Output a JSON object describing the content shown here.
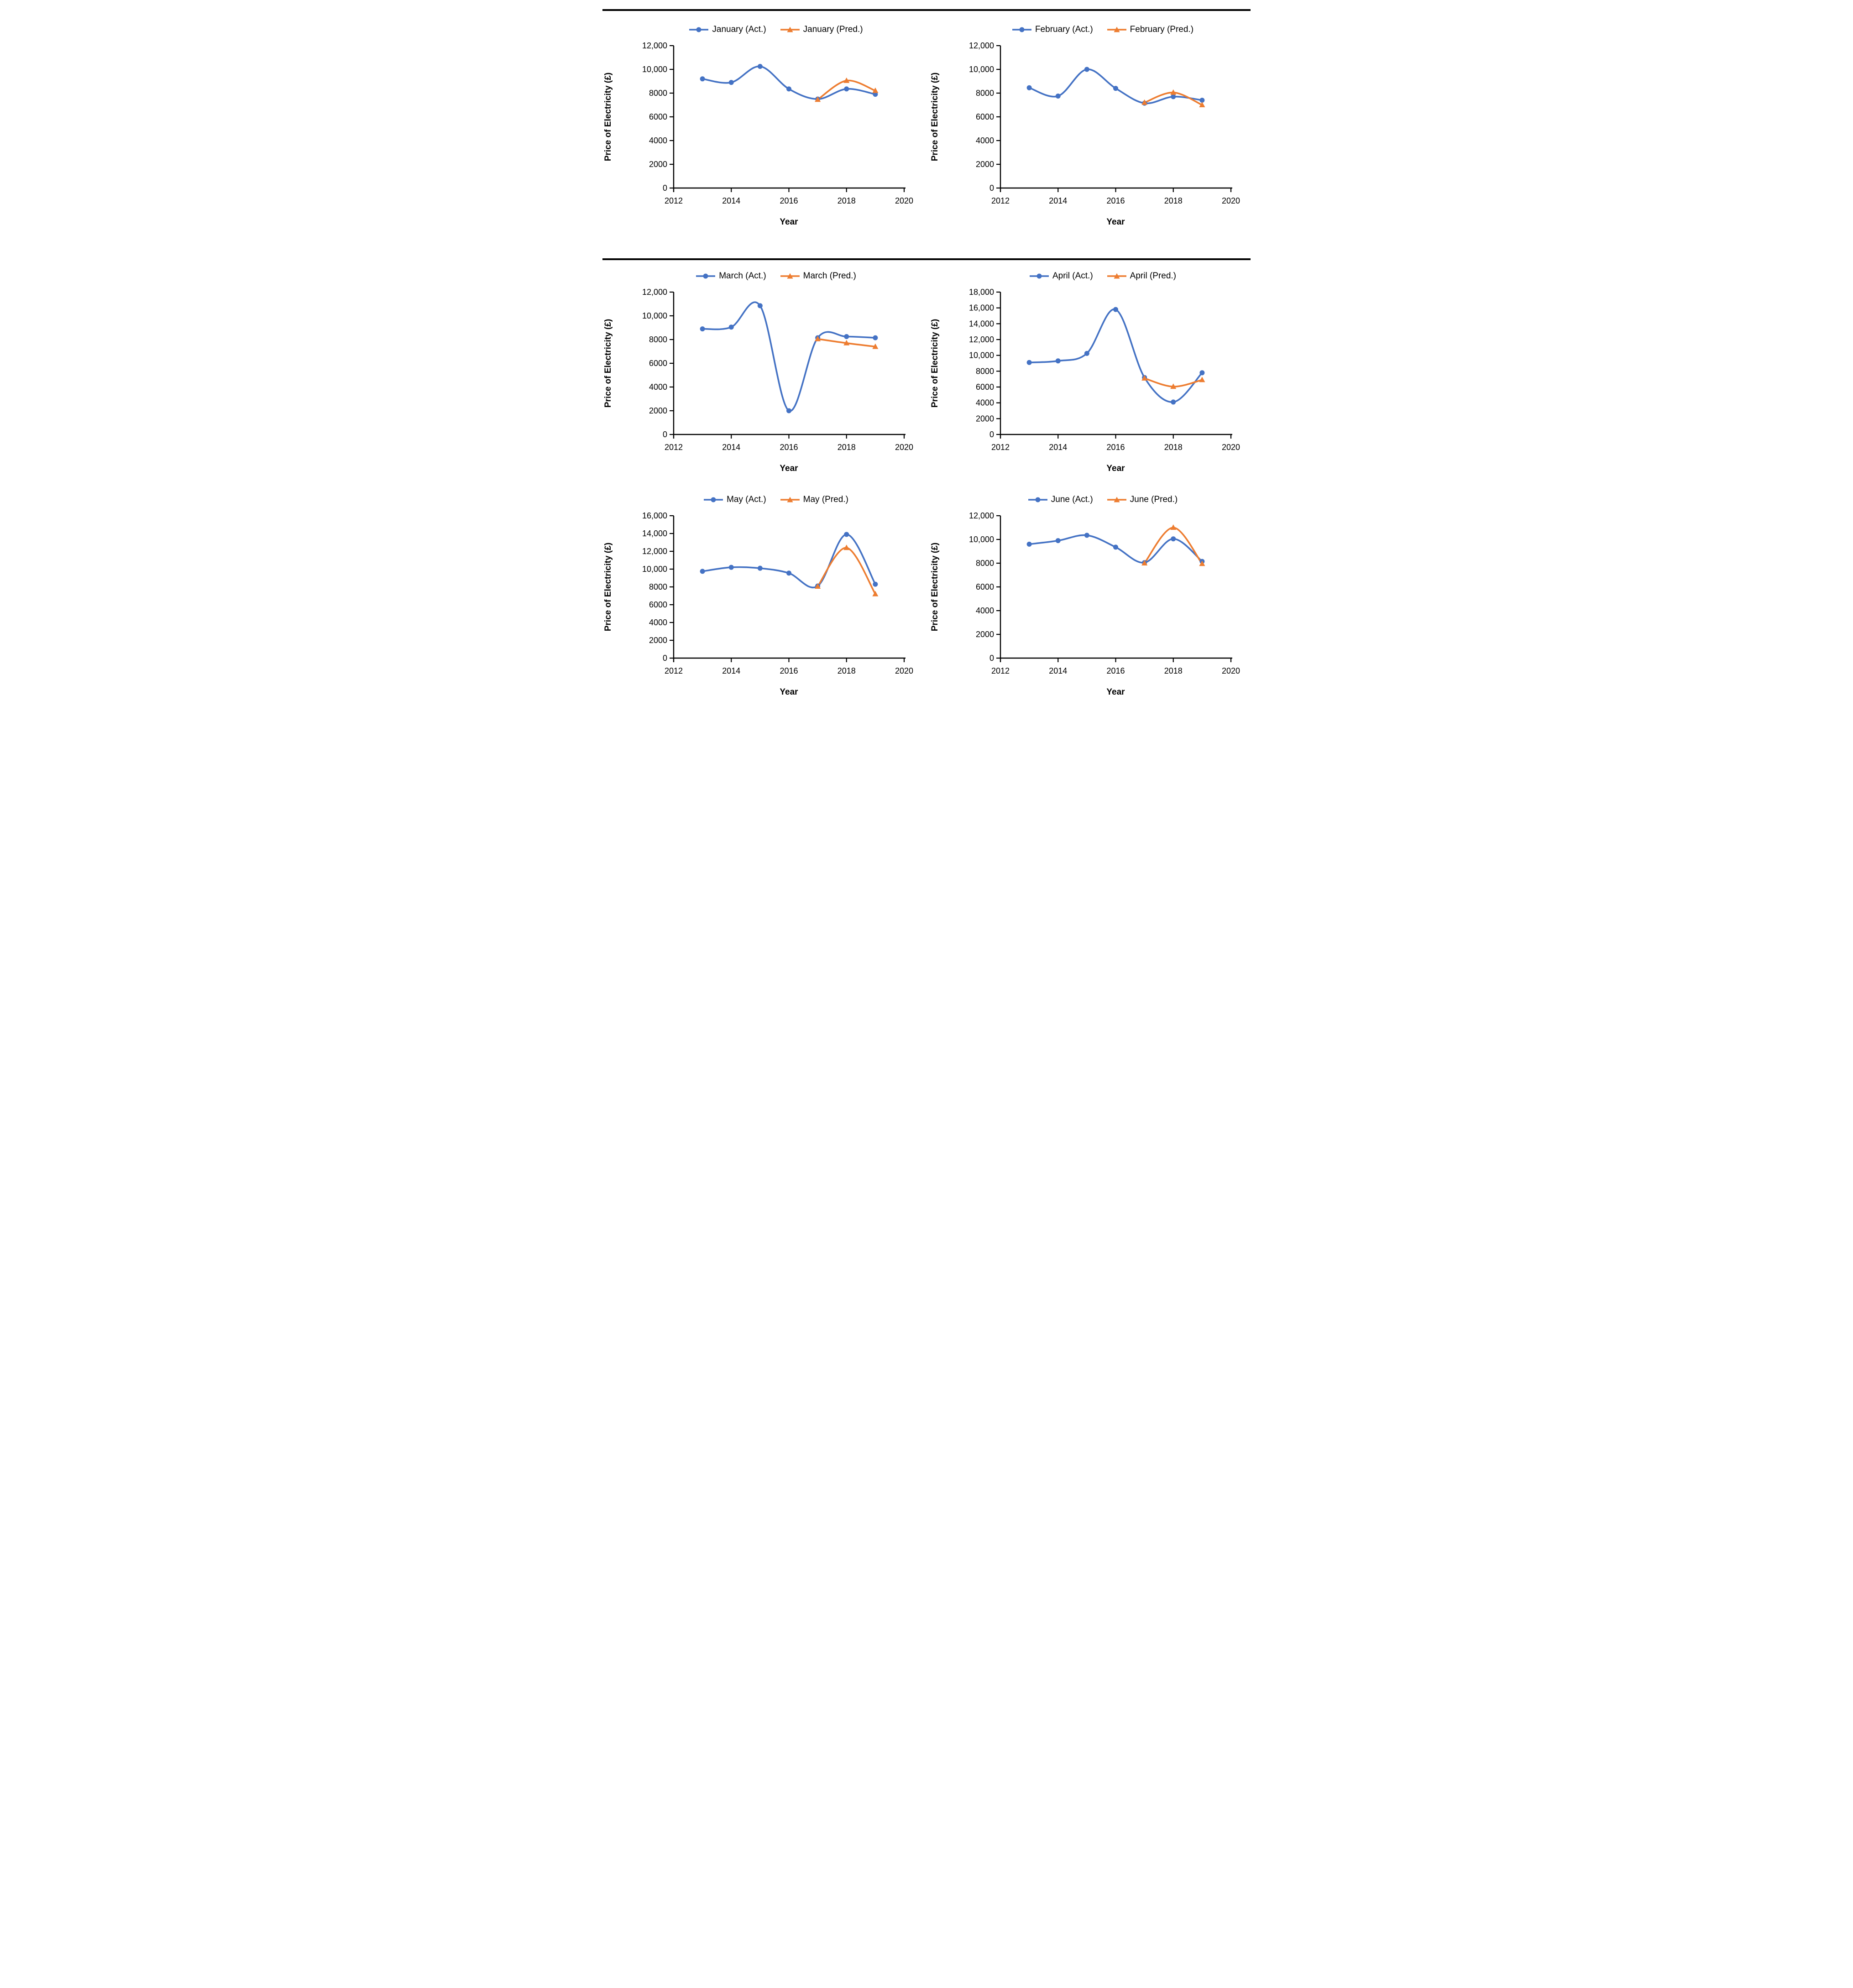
{
  "colors": {
    "actual": "#4472C4",
    "predicted": "#ED7D31",
    "axis": "#000000",
    "divider": "#000000"
  },
  "chart_data": [
    {
      "id": "january",
      "type": "line",
      "title": "",
      "xlabel": "Year",
      "ylabel": "Price of Electricity (£)",
      "xlim": [
        2012,
        2020
      ],
      "ylim": [
        0,
        12000
      ],
      "x_ticks": [
        2012,
        2014,
        2016,
        2018,
        2020
      ],
      "x_tick_labels": [
        "2012",
        "2014",
        "2016",
        "2018",
        "2020"
      ],
      "y_ticks": [
        0,
        2000,
        4000,
        6000,
        8000,
        10000,
        12000
      ],
      "y_tick_labels": [
        "0",
        "2000",
        "4000",
        "6000",
        "8000",
        "10,000",
        "12,000"
      ],
      "legend_position": "top",
      "grid": false,
      "series": [
        {
          "name": "January (Act.)",
          "role": "actual",
          "marker": "circle",
          "x": [
            2013,
            2014,
            2015,
            2016,
            2017,
            2018,
            2019
          ],
          "y": [
            9200,
            8900,
            10250,
            8350,
            7500,
            8350,
            7900
          ]
        },
        {
          "name": "January (Pred.)",
          "role": "predicted",
          "marker": "triangle",
          "x": [
            2017,
            2018,
            2019
          ],
          "y": [
            7450,
            9050,
            8200
          ]
        }
      ]
    },
    {
      "id": "february",
      "type": "line",
      "title": "",
      "xlabel": "Year",
      "ylabel": "Price of Electricity (£)",
      "xlim": [
        2012,
        2020
      ],
      "ylim": [
        0,
        12000
      ],
      "x_ticks": [
        2012,
        2014,
        2016,
        2018,
        2020
      ],
      "x_tick_labels": [
        "2012",
        "2014",
        "2016",
        "2018",
        "2020"
      ],
      "y_ticks": [
        0,
        2000,
        4000,
        6000,
        8000,
        10000,
        12000
      ],
      "y_tick_labels": [
        "0",
        "2000",
        "4000",
        "6000",
        "8000",
        "10,000",
        "12,000"
      ],
      "legend_position": "top",
      "grid": false,
      "series": [
        {
          "name": "February (Act.)",
          "role": "actual",
          "marker": "circle",
          "x": [
            2013,
            2014,
            2015,
            2016,
            2017,
            2018,
            2019
          ],
          "y": [
            8450,
            7750,
            10000,
            8400,
            7150,
            7700,
            7400
          ]
        },
        {
          "name": "February (Pred.)",
          "role": "predicted",
          "marker": "triangle",
          "x": [
            2017,
            2018,
            2019
          ],
          "y": [
            7200,
            8050,
            7000
          ]
        }
      ]
    },
    {
      "id": "march",
      "type": "line",
      "title": "",
      "xlabel": "Year",
      "ylabel": "Price of Electricity (£)",
      "xlim": [
        2012,
        2020
      ],
      "ylim": [
        0,
        12000
      ],
      "x_ticks": [
        2012,
        2014,
        2016,
        2018,
        2020
      ],
      "x_tick_labels": [
        "2012",
        "2014",
        "2016",
        "2018",
        "2020"
      ],
      "y_ticks": [
        0,
        2000,
        4000,
        6000,
        8000,
        10000,
        12000
      ],
      "y_tick_labels": [
        "0",
        "2000",
        "4000",
        "6000",
        "8000",
        "10,000",
        "12,000"
      ],
      "legend_position": "top",
      "grid": false,
      "series": [
        {
          "name": "March (Act.)",
          "role": "actual",
          "marker": "circle",
          "x": [
            2013,
            2014,
            2015,
            2016,
            2017,
            2018,
            2019
          ],
          "y": [
            8900,
            9050,
            10850,
            2000,
            8150,
            8250,
            8150
          ]
        },
        {
          "name": "March (Pred.)",
          "role": "predicted",
          "marker": "triangle",
          "x": [
            2017,
            2018,
            2019
          ],
          "y": [
            8050,
            7700,
            7400
          ]
        }
      ]
    },
    {
      "id": "april",
      "type": "line",
      "title": "",
      "xlabel": "Year",
      "ylabel": "Price of Electricity (£)",
      "xlim": [
        2012,
        2020
      ],
      "ylim": [
        0,
        18000
      ],
      "x_ticks": [
        2012,
        2014,
        2016,
        2018,
        2020
      ],
      "x_tick_labels": [
        "2012",
        "2014",
        "2016",
        "2018",
        "2020"
      ],
      "y_ticks": [
        0,
        2000,
        4000,
        6000,
        8000,
        10000,
        12000,
        14000,
        16000,
        18000
      ],
      "y_tick_labels": [
        "0",
        "2000",
        "4000",
        "6000",
        "8000",
        "10,000",
        "12,000",
        "14,000",
        "16,000",
        "18,000"
      ],
      "legend_position": "top",
      "grid": false,
      "series": [
        {
          "name": "April (Act.)",
          "role": "actual",
          "marker": "circle",
          "x": [
            2013,
            2014,
            2015,
            2016,
            2017,
            2018,
            2019
          ],
          "y": [
            9100,
            9300,
            10250,
            15800,
            7200,
            4100,
            7800
          ]
        },
        {
          "name": "April (Pred.)",
          "role": "predicted",
          "marker": "triangle",
          "x": [
            2017,
            2018,
            2019
          ],
          "y": [
            7100,
            6050,
            6900
          ]
        }
      ]
    },
    {
      "id": "may",
      "type": "line",
      "title": "",
      "xlabel": "Year",
      "ylabel": "Price of Electricity (£)",
      "xlim": [
        2012,
        2020
      ],
      "ylim": [
        0,
        16000
      ],
      "x_ticks": [
        2012,
        2014,
        2016,
        2018,
        2020
      ],
      "x_tick_labels": [
        "2012",
        "2014",
        "2016",
        "2018",
        "2020"
      ],
      "y_ticks": [
        0,
        2000,
        4000,
        6000,
        8000,
        10000,
        12000,
        14000,
        16000
      ],
      "y_tick_labels": [
        "0",
        "2000",
        "4000",
        "6000",
        "8000",
        "10,000",
        "12,000",
        "14,000",
        "16,000"
      ],
      "legend_position": "top",
      "grid": false,
      "series": [
        {
          "name": "May (Act.)",
          "role": "actual",
          "marker": "circle",
          "x": [
            2013,
            2014,
            2015,
            2016,
            2017,
            2018,
            2019
          ],
          "y": [
            9750,
            10200,
            10100,
            9550,
            8100,
            13900,
            8300
          ]
        },
        {
          "name": "May (Pred.)",
          "role": "predicted",
          "marker": "triangle",
          "x": [
            2017,
            2018,
            2019
          ],
          "y": [
            8050,
            12400,
            7200
          ]
        }
      ]
    },
    {
      "id": "june",
      "type": "line",
      "title": "",
      "xlabel": "Year",
      "ylabel": "Price of Electricity (£)",
      "xlim": [
        2012,
        2020
      ],
      "ylim": [
        0,
        12000
      ],
      "x_ticks": [
        2012,
        2014,
        2016,
        2018,
        2020
      ],
      "x_tick_labels": [
        "2012",
        "2014",
        "2016",
        "2018",
        "2020"
      ],
      "y_ticks": [
        0,
        2000,
        4000,
        6000,
        8000,
        10000,
        12000
      ],
      "y_tick_labels": [
        "0",
        "2000",
        "4000",
        "6000",
        "8000",
        "10,000",
        "12,000"
      ],
      "legend_position": "top",
      "grid": false,
      "series": [
        {
          "name": "June (Act.)",
          "role": "actual",
          "marker": "circle",
          "x": [
            2013,
            2014,
            2015,
            2016,
            2017,
            2018,
            2019
          ],
          "y": [
            9600,
            9900,
            10350,
            9350,
            8050,
            10050,
            8150
          ]
        },
        {
          "name": "June (Pred.)",
          "role": "predicted",
          "marker": "triangle",
          "x": [
            2017,
            2018,
            2019
          ],
          "y": [
            8000,
            11000,
            7950
          ]
        }
      ]
    }
  ]
}
